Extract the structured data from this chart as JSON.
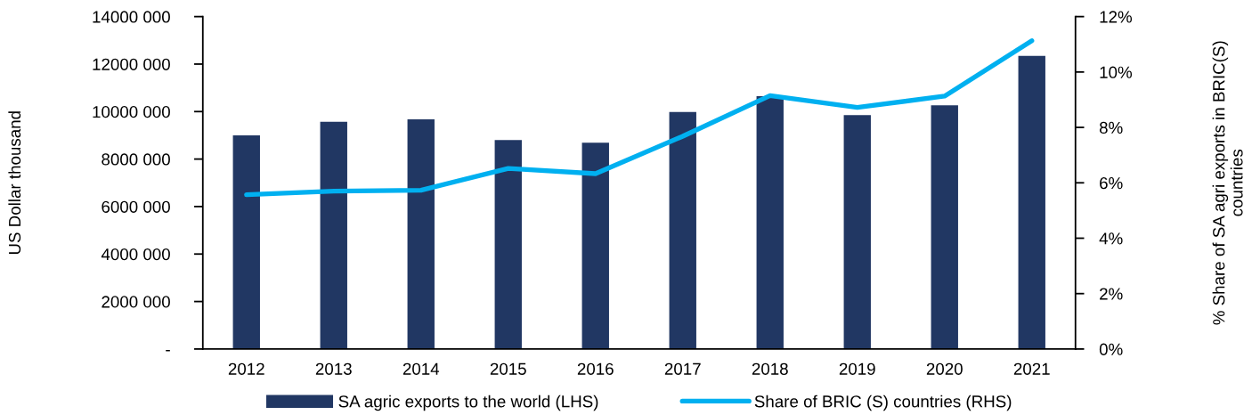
{
  "chart_data": {
    "type": "bar",
    "categories": [
      "2012",
      "2013",
      "2014",
      "2015",
      "2016",
      "2017",
      "2018",
      "2019",
      "2020",
      "2021"
    ],
    "series": [
      {
        "name": "SA agric exports to the world (LHS)",
        "color": "#213763",
        "values": [
          9000000,
          9570000,
          9670000,
          8800000,
          8690000,
          9980000,
          10650000,
          9850000,
          10260000,
          12350000
        ]
      },
      {
        "name": "Share of BRIC (S) countries (RHS)",
        "type": "line",
        "axis": "y2",
        "color": "#00b0f0",
        "values": [
          5.57,
          5.7,
          5.73,
          6.52,
          6.33,
          7.68,
          9.15,
          8.72,
          9.13,
          11.13
        ]
      }
    ],
    "ylabel": "US Dollar thousand",
    "y2label": "% Share of SA agri exports in BRIC(S) countries",
    "ylim": [
      0,
      14000000
    ],
    "yticks": [
      {
        "value": 0,
        "label": "-"
      },
      {
        "value": 2000000,
        "label": "2000 000"
      },
      {
        "value": 4000000,
        "label": "4000 000"
      },
      {
        "value": 6000000,
        "label": "6000 000"
      },
      {
        "value": 8000000,
        "label": "8000 000"
      },
      {
        "value": 10000000,
        "label": "10000 000"
      },
      {
        "value": 12000000,
        "label": "12000 000"
      },
      {
        "value": 14000000,
        "label": "14000 000"
      }
    ],
    "y2lim": [
      0,
      12
    ],
    "y2ticks": [
      {
        "value": 0,
        "label": "0%"
      },
      {
        "value": 2,
        "label": "2%"
      },
      {
        "value": 4,
        "label": "4%"
      },
      {
        "value": 6,
        "label": "6%"
      },
      {
        "value": 8,
        "label": "8%"
      },
      {
        "value": 10,
        "label": "10%"
      },
      {
        "value": 12,
        "label": "12%"
      }
    ],
    "legend": "bottom"
  }
}
